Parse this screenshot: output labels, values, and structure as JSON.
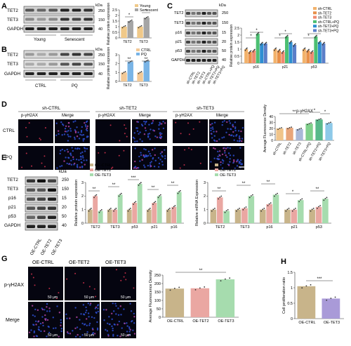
{
  "panels": {
    "A": {
      "letter": "A",
      "blot_labels": [
        "TET2",
        "TET3",
        "GAPDH"
      ],
      "kda": "kDa",
      "kda_marks": [
        "250",
        "150",
        "40"
      ],
      "groups": [
        "Young",
        "Senescent"
      ],
      "legend": [
        "Young",
        "Senescent"
      ],
      "ylabel": "Relative protein expression",
      "sig": [
        "*",
        "*"
      ],
      "chart_data": {
        "type": "bar",
        "categories": [
          "TET2",
          "TET3"
        ],
        "series": [
          {
            "name": "Young",
            "values": [
              1.0,
              1.0
            ]
          },
          {
            "name": "Senescent",
            "values": [
              1.5,
              1.8
            ]
          }
        ],
        "ylabel": "Relative protein expression",
        "ylim": [
          0,
          2.5
        ]
      }
    },
    "B": {
      "letter": "B",
      "blot_labels": [
        "TET2",
        "TET3",
        "GAPDH"
      ],
      "kda": "kDa",
      "kda_marks": [
        "250",
        "150",
        "40"
      ],
      "groups": [
        "CTRL",
        "PQ"
      ],
      "legend": [
        "CTRL",
        "PQ"
      ],
      "ylabel": "Relative protein expression",
      "sig": [
        "**",
        "**"
      ],
      "chart_data": {
        "type": "bar",
        "categories": [
          "TET2",
          "TET3"
        ],
        "series": [
          {
            "name": "CTRL",
            "values": [
              1.0,
              1.0
            ]
          },
          {
            "name": "PQ",
            "values": [
              2.2,
              2.3
            ]
          }
        ],
        "ylabel": "Relative protein expression",
        "ylim": [
          0,
          3
        ]
      }
    },
    "C": {
      "letter": "C",
      "blot_labels": [
        "TET2",
        "TET3",
        "p16",
        "p21",
        "p53",
        "GAPDH"
      ],
      "kda": "kDa",
      "kda_marks": [
        "250",
        "150",
        "15",
        "20",
        "50",
        "40"
      ],
      "lanes": [
        "sh-CTRL",
        "sh-TET2",
        "sh-TET3",
        "sh-CTRL+PQ",
        "sh-TET2+PQ",
        "sh-TET3+PQ"
      ],
      "legend": [
        "sh-CTRL",
        "sh-TET2",
        "sh-TET3",
        "sh-CTRL+PQ",
        "sh-TET2+PQ",
        "sh-TET3+PQ"
      ],
      "ylabel": "Relative protein expression",
      "sig": [
        "*",
        "*",
        "*",
        "*",
        "*",
        "*"
      ],
      "chart_data": {
        "type": "bar",
        "categories": [
          "p16",
          "p21",
          "p53"
        ],
        "series": [
          {
            "name": "sh-CTRL",
            "values": [
              1.0,
              1.0,
              1.0
            ]
          },
          {
            "name": "sh-TET2",
            "values": [
              0.8,
              0.9,
              0.9
            ]
          },
          {
            "name": "sh-TET3",
            "values": [
              0.9,
              0.8,
              0.8
            ]
          },
          {
            "name": "sh-CTRL+PQ",
            "values": [
              2.1,
              1.9,
              1.9
            ]
          },
          {
            "name": "sh-TET2+PQ",
            "values": [
              1.4,
              1.5,
              1.5
            ]
          },
          {
            "name": "sh-TET3+PQ",
            "values": [
              1.4,
              1.3,
              1.4
            ]
          }
        ],
        "ylabel": "Relative protein expression",
        "ylim": [
          0,
          2.5
        ]
      }
    },
    "D": {
      "letter": "D",
      "col_headers": [
        "sh-CTRL",
        "sh-TET2",
        "sh-TET3"
      ],
      "subheaders": [
        "p-γH2AX",
        "Merge"
      ],
      "rows": [
        "CTRL",
        "PQ"
      ],
      "chart_title": "p-γH2AX",
      "ylabel": "Average Fluorescence Density",
      "sig": [
        "**",
        "*",
        "*"
      ],
      "chart_data": {
        "type": "bar",
        "categories": [
          "sh-CTRL",
          "sh-TET2",
          "sh-TET3",
          "sh-CTRL+PQ",
          "sh-TET2+PQ",
          "sh-TET3+PQ"
        ],
        "values": [
          20,
          21,
          19,
          28,
          35,
          29
        ],
        "title": "p-γH2AX",
        "ylabel": "Average Fluorescence Density",
        "ylim": [
          0,
          40
        ]
      }
    },
    "E": {
      "letter": "E",
      "blot_labels": [
        "TET2",
        "TET3",
        "p16",
        "p21",
        "p53",
        "GAPDH"
      ],
      "kda": "kDa",
      "kda_marks": [
        "250",
        "150",
        "15",
        "20",
        "50",
        "40"
      ],
      "lanes": [
        "OE-CTRL",
        "OE-TET2",
        "OE-TET3"
      ],
      "legend": [
        "OE-CTRL",
        "OE-TET2",
        "OE-TET3"
      ],
      "ylabel": "Relative protein expression",
      "sig": [
        "**",
        "**",
        "***",
        "**",
        "**"
      ],
      "chart_data": {
        "type": "bar",
        "categories": [
          "TET2",
          "TET3",
          "p53",
          "p21",
          "p16"
        ],
        "series": [
          {
            "name": "OE-CTRL",
            "values": [
              1.0,
              1.0,
              1.0,
              1.0,
              1.0
            ]
          },
          {
            "name": "OE-TET2",
            "values": [
              2.0,
              1.0,
              1.5,
              1.5,
              1.2
            ]
          },
          {
            "name": "OE-TET3",
            "values": [
              0.9,
              2.1,
              2.9,
              2.0,
              2.3
            ]
          }
        ],
        "ylabel": "Relative protein expression",
        "ylim": [
          0,
          3
        ]
      }
    },
    "F": {
      "letter": "F",
      "legend": [
        "OE-CTRL",
        "OE-TET2",
        "OE-TET3"
      ],
      "ylabel": "Relative mRNA Expression",
      "sig": [
        "**",
        "**",
        "**",
        "*",
        "**"
      ],
      "chart_data": {
        "type": "bar",
        "categories": [
          "TET2",
          "TET3",
          "p16",
          "p21",
          "p53"
        ],
        "series": [
          {
            "name": "OE-CTRL",
            "values": [
              1.0,
              1.0,
              1.0,
              1.0,
              1.0
            ]
          },
          {
            "name": "OE-TET2",
            "values": [
              1.9,
              1.1,
              1.4,
              1.0,
              1.2
            ]
          },
          {
            "name": "OE-TET3",
            "values": [
              0.9,
              2.0,
              2.1,
              1.7,
              1.8
            ]
          }
        ],
        "ylabel": "Relative mRNA Expression",
        "ylim": [
          0,
          3
        ]
      }
    },
    "G": {
      "letter": "G",
      "col_headers": [
        "OE-CTRL",
        "OE-TET2",
        "OE-TET3"
      ],
      "rows": [
        "p-γH2AX",
        "Merge"
      ],
      "scale": "50 μm",
      "ylabel": "Average Fluorescence Density",
      "sig": [
        "**"
      ],
      "chart_data": {
        "type": "bar",
        "categories": [
          "OE-CTRL",
          "OE-TET2",
          "OE-TET3"
        ],
        "values": [
          170,
          172,
          225
        ],
        "ylabel": "Average Fluorescence Density",
        "ylim": [
          0,
          250
        ]
      }
    },
    "H": {
      "letter": "H",
      "ylabel": "Cell proliferation ratio",
      "sig": [
        "***"
      ],
      "chart_data": {
        "type": "bar",
        "categories": [
          "OE-CTRL",
          "OE-TET3"
        ],
        "values": [
          1.05,
          0.65
        ],
        "ylabel": "Cell proliferation ratio",
        "ylim": [
          0,
          1.5
        ]
      }
    }
  },
  "colors": {
    "tan": "#c8b48a",
    "pink": "#eaa7a2",
    "green": "#a6dcae",
    "young": "#f0c989",
    "senescent": "#a5a5a5",
    "ctrl": "#f3c996",
    "pq": "#79b4e6",
    "sh": [
      "#f2b26b",
      "#e8904a",
      "#f08a70",
      "#4cbf72",
      "#2f8fd1",
      "#5b7ec8"
    ],
    "d_bars": [
      "#f0c48a",
      "#e8a57a",
      "#a9b8d8",
      "#7fd08b",
      "#58b98a",
      "#8dc9e8"
    ],
    "fluor_red": "#d6334e",
    "fluor_blue": "#2d4fd0"
  }
}
